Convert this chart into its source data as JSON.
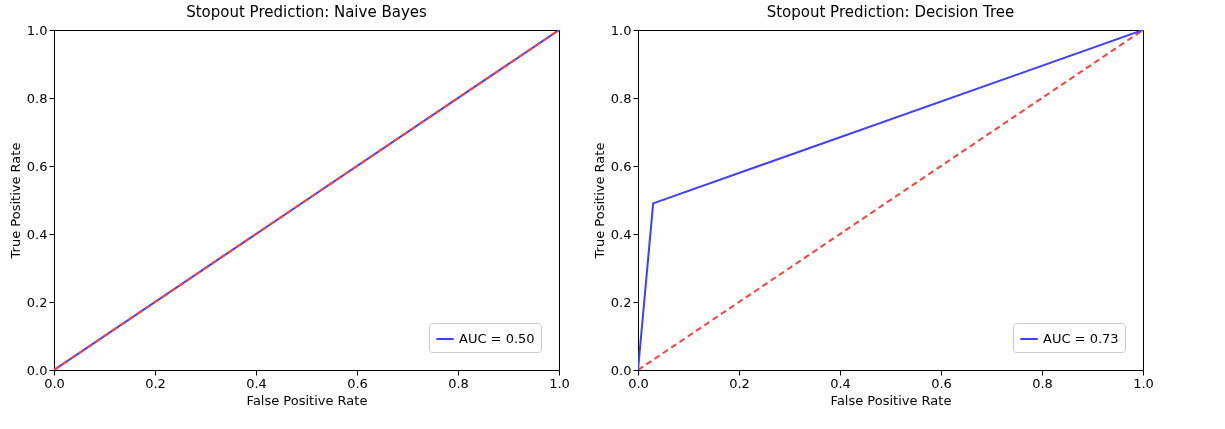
{
  "chart_data": [
    {
      "type": "line",
      "title": "Stopout Prediction: Naive Bayes",
      "xlabel": "False Positive Rate",
      "ylabel": "True Positive Rate",
      "xlim": [
        0,
        1
      ],
      "ylim": [
        0,
        1
      ],
      "xticks": [
        {
          "value": 0,
          "label": "0.0"
        },
        {
          "value": 0.2,
          "label": "0.2"
        },
        {
          "value": 0.4,
          "label": "0.4"
        },
        {
          "value": 0.6,
          "label": "0.6"
        },
        {
          "value": 0.8,
          "label": "0.8"
        },
        {
          "value": 1,
          "label": "1.0"
        }
      ],
      "yticks": [
        {
          "value": 0,
          "label": "0.0"
        },
        {
          "value": 0.2,
          "label": "0.2"
        },
        {
          "value": 0.4,
          "label": "0.4"
        },
        {
          "value": 0.6,
          "label": "0.6"
        },
        {
          "value": 0.8,
          "label": "0.8"
        },
        {
          "value": 1,
          "label": "1.0"
        }
      ],
      "legend": "bottom right",
      "grid": false,
      "series": [
        {
          "name": "AUC = 0.50",
          "color": "#3f3ffe",
          "line_style": "solid",
          "x": [
            0,
            1
          ],
          "values": [
            0,
            1
          ]
        },
        {
          "color": "#ff3f3f",
          "line_style": "dashed",
          "x": [
            0,
            1
          ],
          "values": [
            0,
            1
          ]
        }
      ]
    },
    {
      "type": "line",
      "title": "Stopout Prediction: Decision Tree",
      "xlabel": "False Positive Rate",
      "ylabel": "True Positive Rate",
      "xlim": [
        0,
        1
      ],
      "ylim": [
        0,
        1
      ],
      "xticks": [
        {
          "value": 0,
          "label": "0.0"
        },
        {
          "value": 0.2,
          "label": "0.2"
        },
        {
          "value": 0.4,
          "label": "0.4"
        },
        {
          "value": 0.6,
          "label": "0.6"
        },
        {
          "value": 0.8,
          "label": "0.8"
        },
        {
          "value": 1,
          "label": "1.0"
        }
      ],
      "yticks": [
        {
          "value": 0,
          "label": "0.0"
        },
        {
          "value": 0.2,
          "label": "0.2"
        },
        {
          "value": 0.4,
          "label": "0.4"
        },
        {
          "value": 0.6,
          "label": "0.6"
        },
        {
          "value": 0.8,
          "label": "0.8"
        },
        {
          "value": 1,
          "label": "1.0"
        }
      ],
      "legend": "bottom right",
      "grid": false,
      "series": [
        {
          "color": "#ff3f3f",
          "line_style": "dashed",
          "x": [
            0,
            1
          ],
          "values": [
            0,
            1
          ]
        },
        {
          "name": "AUC = 0.73",
          "color": "#3f3ffe",
          "line_style": "solid",
          "x": [
            0,
            0.03,
            1
          ],
          "values": [
            0,
            0.49,
            1
          ]
        }
      ]
    }
  ]
}
